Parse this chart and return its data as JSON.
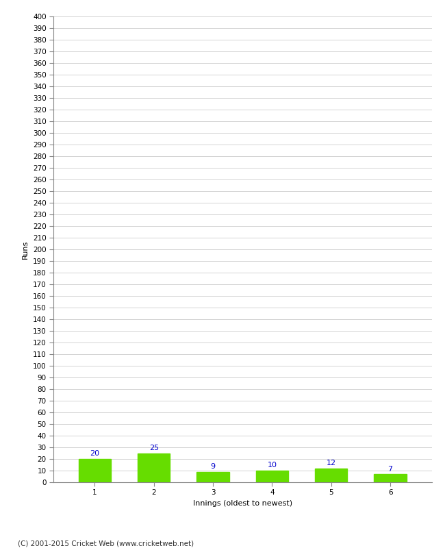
{
  "innings": [
    1,
    2,
    3,
    4,
    5,
    6
  ],
  "runs": [
    20,
    25,
    9,
    10,
    12,
    7
  ],
  "bar_color": "#66dd00",
  "bar_edge_color": "#66dd00",
  "label_color": "#0000cc",
  "xlabel": "Innings (oldest to newest)",
  "ylabel": "Runs",
  "ylim": [
    0,
    400
  ],
  "background_color": "#ffffff",
  "grid_color": "#cccccc",
  "footer": "(C) 2001-2015 Cricket Web (www.cricketweb.net)",
  "label_fontsize": 8,
  "axis_label_fontsize": 8,
  "tick_fontsize": 7.5,
  "footer_fontsize": 7.5,
  "bar_width": 0.55
}
